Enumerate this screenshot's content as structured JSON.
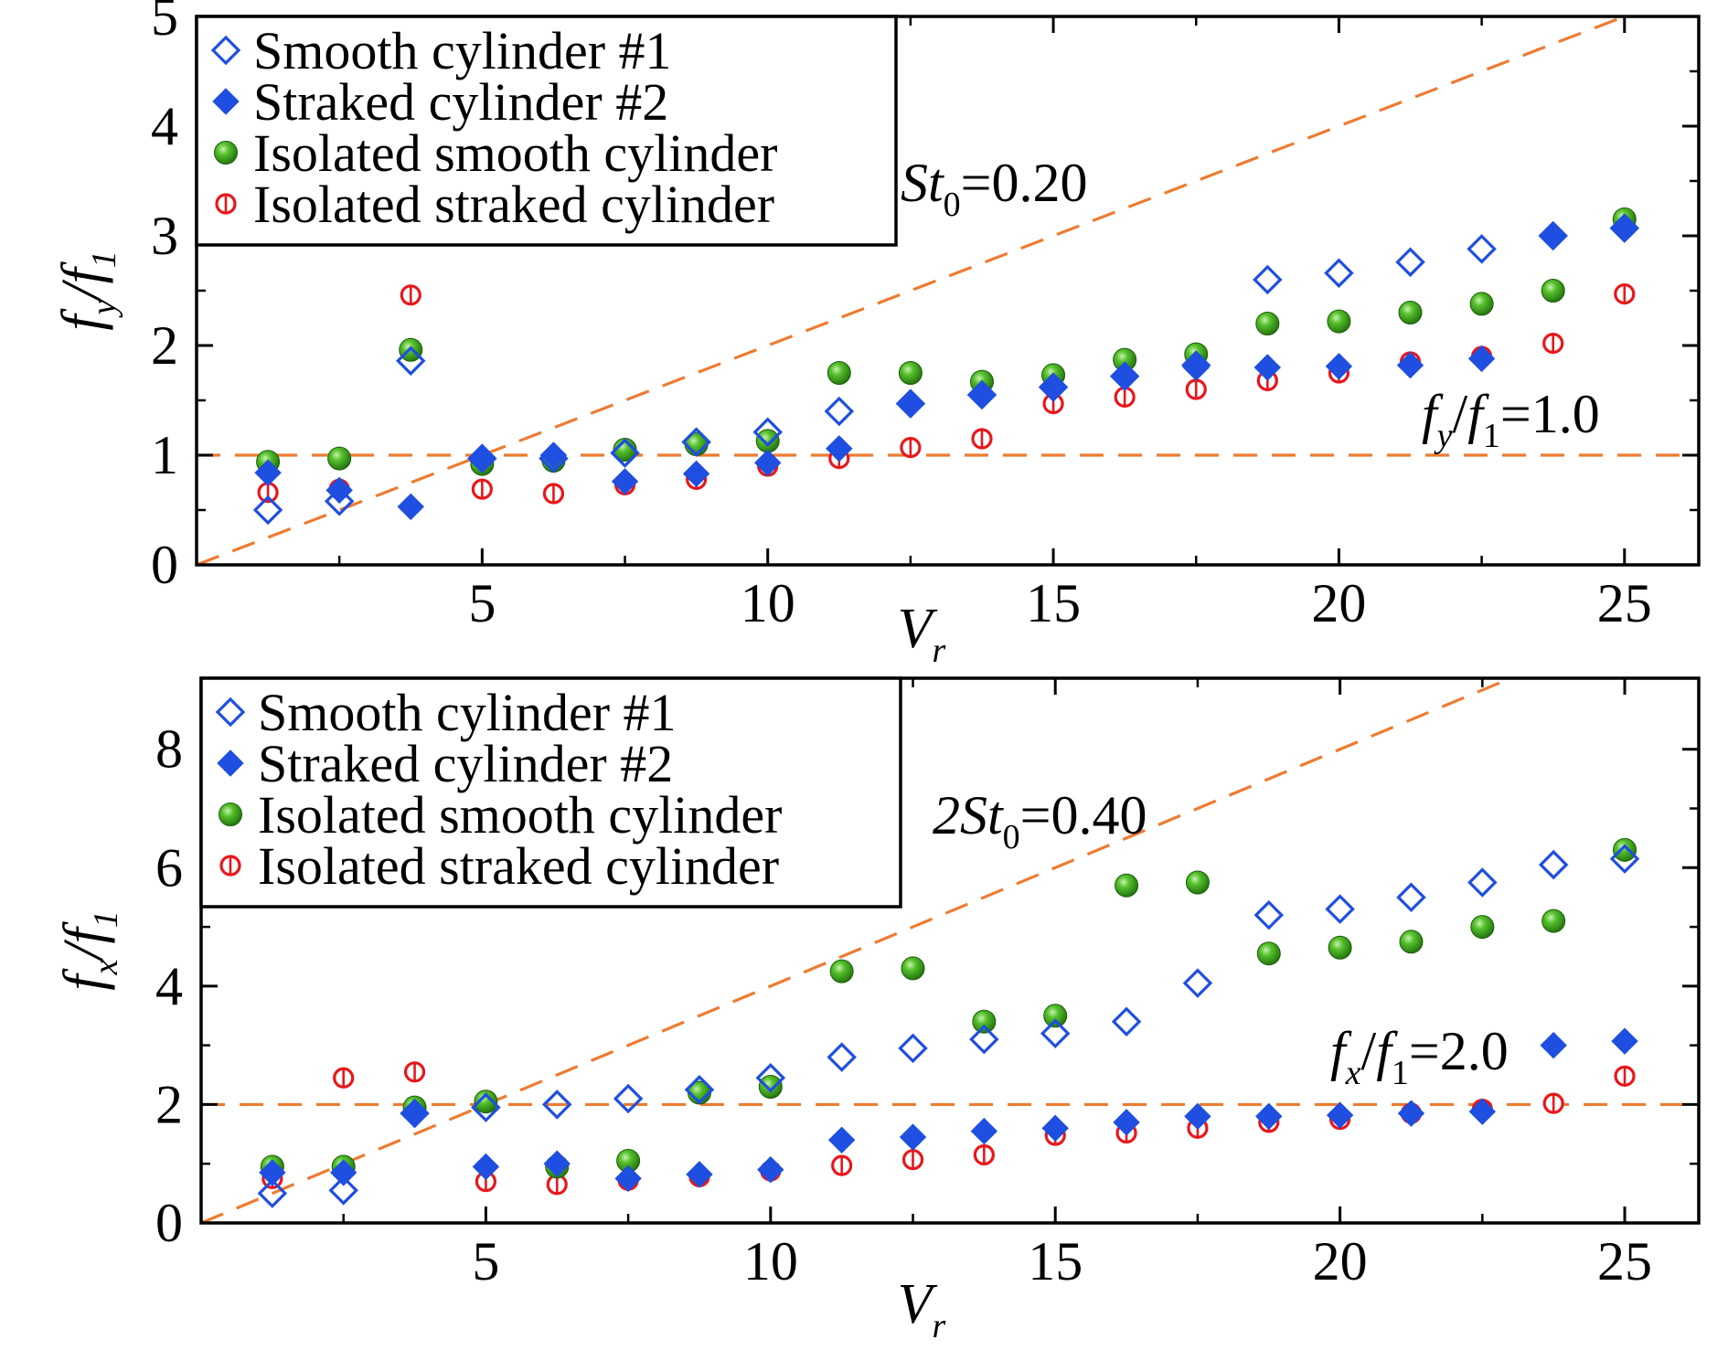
{
  "chart_data": [
    {
      "type": "scatter",
      "panel": "top",
      "xlabel": "V",
      "xlabel_sub": "r",
      "ylabel_parts": [
        "f",
        "y",
        "/",
        "f",
        "1"
      ],
      "xlim": [
        0,
        26.3
      ],
      "ylim": [
        0,
        5
      ],
      "xticks": [
        5,
        10,
        15,
        20,
        25
      ],
      "yticks": [
        0,
        1,
        2,
        3,
        4,
        5
      ],
      "legend_position": "top-left",
      "annotations": [
        {
          "name": "strouhal-line-label",
          "parts": [
            "St",
            "0",
            "=0.20"
          ]
        },
        {
          "name": "unity-line-label",
          "parts": [
            "f",
            "y",
            "/",
            "f",
            "1",
            "=1.0"
          ]
        }
      ],
      "reference_lines": [
        {
          "name": "strouhal-line",
          "slope": 0.2,
          "intercept": 0
        },
        {
          "name": "unity-line",
          "slope": 0,
          "intercept": 1.0
        }
      ],
      "series": [
        {
          "name": "Smooth cylinder #1",
          "marker": "diamond-open",
          "color": "#1f4fe0",
          "x": [
            1.25,
            2.5,
            3.75,
            5,
            6.25,
            7.5,
            8.75,
            10,
            11.25,
            12.5,
            13.75,
            15,
            16.25,
            17.5,
            18.75,
            20,
            21.25,
            22.5,
            23.75,
            25
          ],
          "y": [
            0.5,
            0.58,
            1.86,
            0.97,
            0.97,
            1.02,
            1.12,
            1.21,
            1.4,
            1.47,
            1.55,
            1.62,
            1.72,
            1.82,
            2.6,
            2.66,
            2.76,
            2.88,
            3.0,
            3.07
          ]
        },
        {
          "name": "Straked cylinder #2",
          "marker": "diamond-filled",
          "color": "#1f4fe0",
          "x": [
            1.25,
            2.5,
            3.75,
            5,
            6.25,
            7.5,
            8.75,
            10,
            11.25,
            12.5,
            13.75,
            15,
            16.25,
            17.5,
            18.75,
            20,
            21.25,
            22.5,
            23.75,
            25
          ],
          "y": [
            0.84,
            0.68,
            0.53,
            0.97,
            1.0,
            0.76,
            0.83,
            0.93,
            1.06,
            1.47,
            1.55,
            1.62,
            1.72,
            1.8,
            1.8,
            1.81,
            1.82,
            1.88,
            3.0,
            3.07
          ]
        },
        {
          "name": "Isolated smooth cylinder",
          "marker": "sphere",
          "color": "#3aa318",
          "x": [
            1.25,
            2.5,
            3.75,
            5,
            6.25,
            7.5,
            8.75,
            10,
            11.25,
            12.5,
            13.75,
            15,
            16.25,
            17.5,
            18.75,
            20,
            21.25,
            22.5,
            23.75,
            25
          ],
          "y": [
            0.94,
            0.97,
            1.96,
            0.92,
            0.95,
            1.05,
            1.1,
            1.13,
            1.75,
            1.75,
            1.67,
            1.73,
            1.87,
            1.92,
            2.2,
            2.22,
            2.3,
            2.38,
            2.5,
            3.15
          ]
        },
        {
          "name": "Isolated straked cylinder",
          "marker": "ring-bar",
          "color": "#e8171c",
          "x": [
            1.25,
            2.5,
            3.75,
            5,
            6.25,
            7.5,
            8.75,
            10,
            11.25,
            12.5,
            13.75,
            15,
            16.25,
            17.5,
            18.75,
            20,
            21.25,
            22.5,
            23.75,
            25
          ],
          "y": [
            0.66,
            0.69,
            2.46,
            0.69,
            0.65,
            0.73,
            0.78,
            0.9,
            0.97,
            1.07,
            1.15,
            1.47,
            1.53,
            1.6,
            1.68,
            1.75,
            1.85,
            1.9,
            2.02,
            2.47
          ]
        }
      ]
    },
    {
      "type": "scatter",
      "panel": "bottom",
      "xlabel": "V",
      "xlabel_sub": "r",
      "ylabel_parts": [
        "f",
        "x",
        "/",
        "f",
        "1"
      ],
      "xlim": [
        0,
        26.3
      ],
      "ylim": [
        0,
        9.2
      ],
      "xticks": [
        5,
        10,
        15,
        20,
        25
      ],
      "yticks": [
        0,
        2,
        4,
        6,
        8
      ],
      "legend_position": "top-left",
      "annotations": [
        {
          "name": "strouhal-line-label",
          "parts": [
            "2St",
            "0",
            "=0.40"
          ]
        },
        {
          "name": "two-line-label",
          "parts": [
            "f",
            "x",
            "/",
            "f",
            "1",
            "=2.0"
          ]
        }
      ],
      "reference_lines": [
        {
          "name": "strouhal-line",
          "slope": 0.4,
          "intercept": 0
        },
        {
          "name": "two-line",
          "slope": 0,
          "intercept": 2.0
        }
      ],
      "series": [
        {
          "name": "Smooth cylinder #1",
          "marker": "diamond-open",
          "color": "#1f4fe0",
          "x": [
            1.25,
            2.5,
            3.75,
            5,
            6.25,
            7.5,
            8.75,
            10,
            11.25,
            12.5,
            13.75,
            15,
            16.25,
            17.5,
            18.75,
            20,
            21.25,
            22.5,
            23.75,
            25
          ],
          "y": [
            0.5,
            0.55,
            1.85,
            1.95,
            2.0,
            2.1,
            2.25,
            2.45,
            2.8,
            2.95,
            3.1,
            3.2,
            3.4,
            4.05,
            5.2,
            5.3,
            5.5,
            5.75,
            6.05,
            6.15
          ]
        },
        {
          "name": "Straked cylinder #2",
          "marker": "diamond-filled",
          "color": "#1f4fe0",
          "x": [
            1.25,
            2.5,
            3.75,
            5,
            6.25,
            7.5,
            8.75,
            10,
            11.25,
            12.5,
            13.75,
            15,
            16.25,
            17.5,
            18.75,
            20,
            21.25,
            22.5,
            23.75,
            25
          ],
          "y": [
            0.85,
            0.85,
            1.85,
            0.95,
            1.0,
            0.75,
            0.82,
            0.9,
            1.4,
            1.45,
            1.55,
            1.6,
            1.7,
            1.8,
            1.8,
            1.82,
            1.85,
            1.88,
            3.0,
            3.07
          ]
        },
        {
          "name": "Isolated smooth cylinder",
          "marker": "sphere",
          "color": "#3aa318",
          "x": [
            1.25,
            2.5,
            3.75,
            5,
            6.25,
            7.5,
            8.75,
            10,
            11.25,
            12.5,
            13.75,
            15,
            16.25,
            17.5,
            18.75,
            20,
            21.25,
            22.5,
            23.75,
            25
          ],
          "y": [
            0.95,
            0.95,
            1.95,
            2.05,
            0.95,
            1.05,
            2.2,
            2.3,
            4.25,
            4.3,
            3.4,
            3.5,
            5.7,
            5.75,
            4.55,
            4.65,
            4.75,
            5.0,
            5.1,
            6.3
          ]
        },
        {
          "name": "Isolated straked cylinder",
          "marker": "ring-bar",
          "color": "#e8171c",
          "x": [
            1.25,
            2.5,
            3.75,
            5,
            6.25,
            7.5,
            8.75,
            10,
            11.25,
            12.5,
            13.75,
            15,
            16.25,
            17.5,
            18.75,
            20,
            21.25,
            22.5,
            23.75,
            25
          ],
          "y": [
            0.75,
            2.45,
            2.55,
            0.7,
            0.65,
            0.72,
            0.78,
            0.88,
            0.97,
            1.07,
            1.15,
            1.48,
            1.52,
            1.6,
            1.7,
            1.75,
            1.85,
            1.92,
            2.02,
            2.48
          ]
        }
      ]
    }
  ],
  "colors": {
    "reference_line": "#ee7b30",
    "blue": "#1f4fe0",
    "green": "#3aa318",
    "red": "#e8171c"
  }
}
